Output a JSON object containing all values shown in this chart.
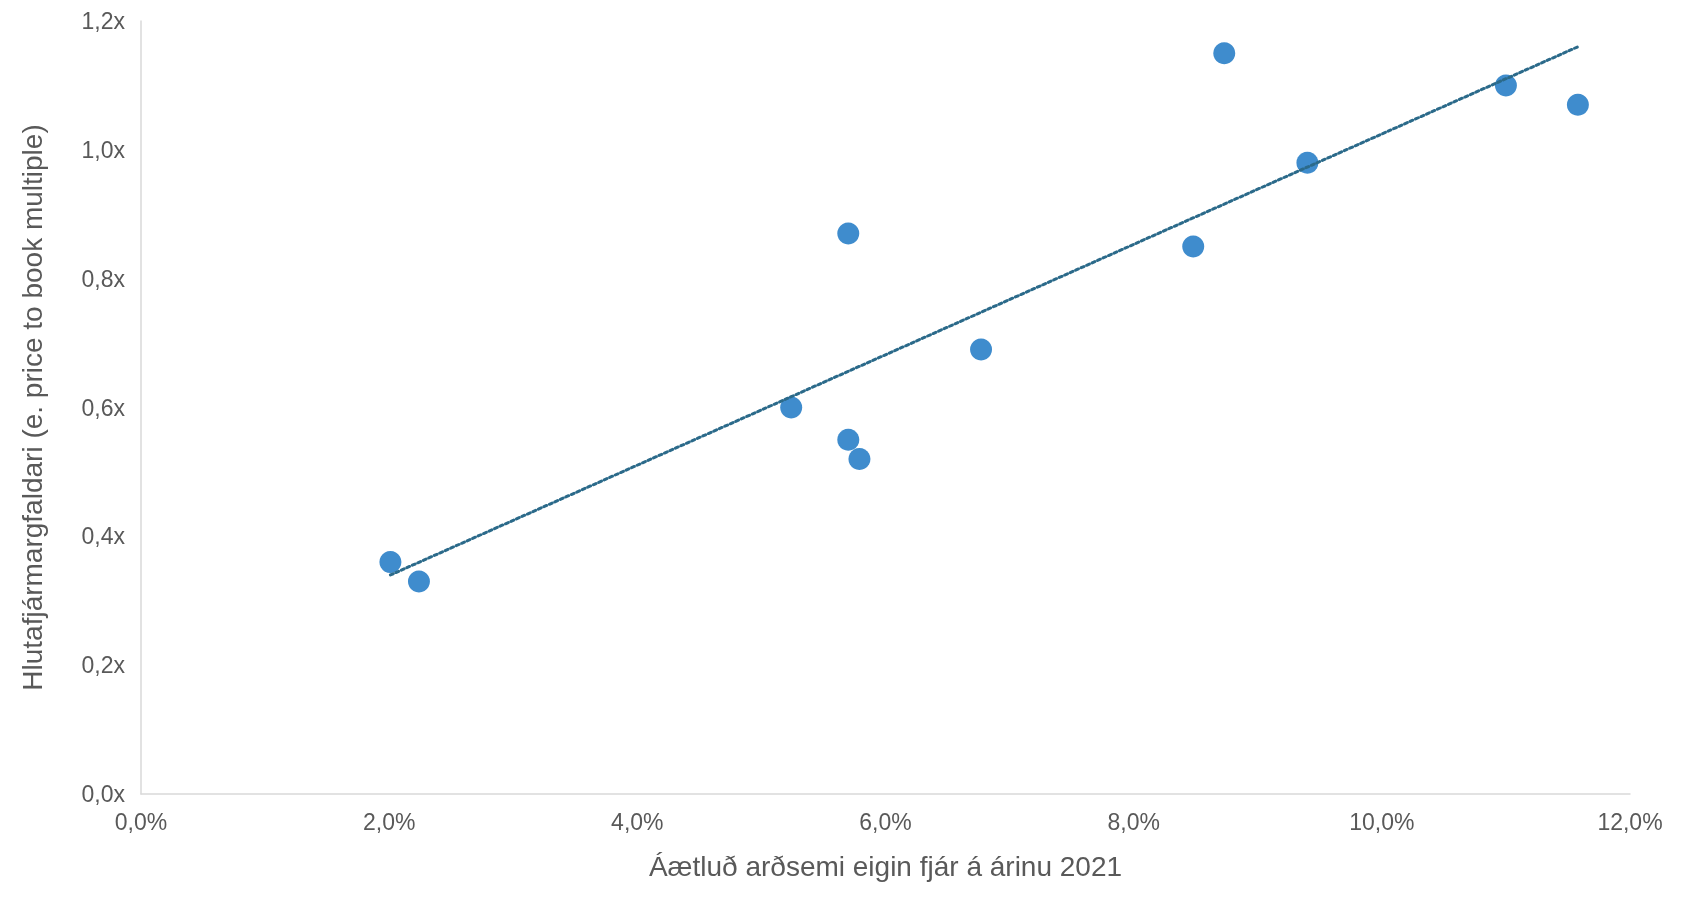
{
  "chart_data": {
    "type": "scatter",
    "xlabel": "Áætluð arðsemi eigin fjár á árinu 2021",
    "ylabel": "Hlutafjármargfaldari (e. price to book multiple)",
    "xlim": [
      0,
      12
    ],
    "xticks": [
      {
        "value": 0,
        "label": "0,0%"
      },
      {
        "value": 2,
        "label": "2,0%"
      },
      {
        "value": 4,
        "label": "4,0%"
      },
      {
        "value": 6,
        "label": "6,0%"
      },
      {
        "value": 8,
        "label": "8,0%"
      },
      {
        "value": 10,
        "label": "10,0%"
      },
      {
        "value": 12,
        "label": "12,0%"
      }
    ],
    "ylim": [
      0,
      1.2
    ],
    "yticks": [
      {
        "value": 0,
        "label": "0,0x"
      },
      {
        "value": 0.2,
        "label": "0,2x"
      },
      {
        "value": 0.4,
        "label": "0,4x"
      },
      {
        "value": 0.6,
        "label": "0,6x"
      },
      {
        "value": 0.8,
        "label": "0,8x"
      },
      {
        "value": 1.0,
        "label": "1,0x"
      },
      {
        "value": 1.2,
        "label": "1,2x"
      }
    ],
    "grid": false,
    "marker": "circle",
    "series": [
      {
        "color": "#0f6fc0",
        "x": [
          2.01,
          2.24,
          5.24,
          5.7,
          5.7,
          5.79,
          6.77,
          8.48,
          8.73,
          9.4,
          11.0,
          11.58
        ],
        "values": [
          0.36,
          0.33,
          0.6,
          0.87,
          0.55,
          0.52,
          0.69,
          0.85,
          1.15,
          0.98,
          1.1,
          1.07
        ]
      },
      {
        "type": "line",
        "color": "#2b6a8a",
        "line_style": "dotted",
        "marker": "none",
        "x": [
          2.01,
          11.58
        ],
        "values": [
          0.34,
          1.16
        ]
      }
    ]
  }
}
